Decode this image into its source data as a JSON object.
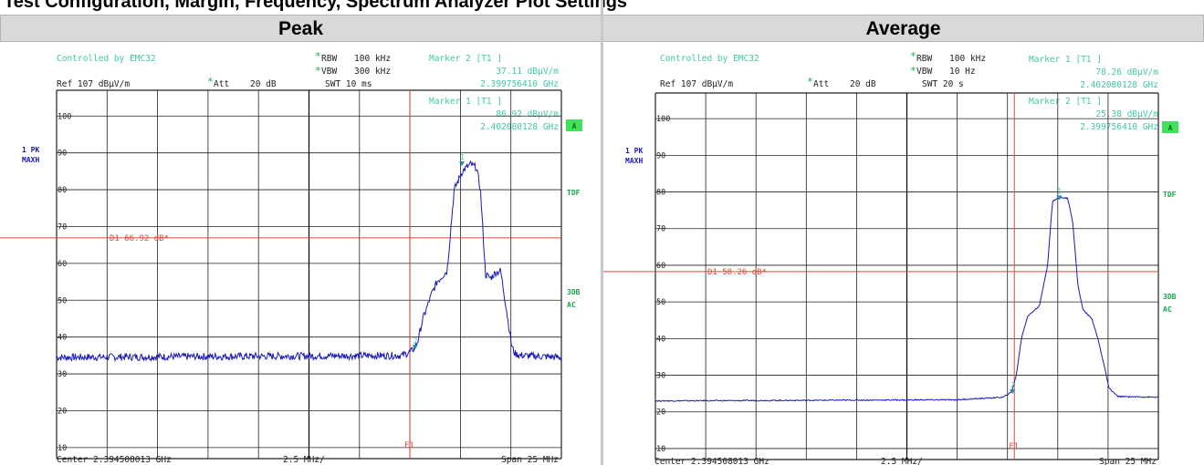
{
  "top_strip": "Test Configuration, Margin, Frequency, Spectrum Analyzer Plot Settings",
  "chart_data": [
    {
      "type": "line",
      "title": "Peak",
      "controlled_by": "Controlled by EMC32",
      "settings": {
        "rbw_label": "RBW",
        "rbw_value": "100 kHz",
        "vbw_label": "VBW",
        "vbw_value": "300 kHz",
        "ref": "Ref  107 dBµV/m",
        "att_label": "Att",
        "att_value": "20 dB",
        "swt": "SWT 10 ms"
      },
      "markers": [
        {
          "label": "Marker 2 [T1 ]",
          "level": "37.11 dBµV/m",
          "freq": "2.399756410 GHz",
          "id": "2",
          "x_mhz": 2399.75641,
          "y": 37.11
        },
        {
          "label": "Marker 1 [T1 ]",
          "level": "86.92 dBµV/m",
          "freq": "2.402080128 GHz",
          "id": "1",
          "x_mhz": 2402.080128,
          "y": 86.92
        }
      ],
      "display_line": {
        "label": "D1  66.92 dB*",
        "y": 66.92
      },
      "f1_line": {
        "label": "F1",
        "x_mhz": 2399.5
      },
      "trace_label": "1 PK",
      "trace_mode": "MAXH",
      "side_labels": [
        "A",
        "TDF",
        "3DB",
        "AC"
      ],
      "y_ticks": [
        "100",
        "90",
        "80",
        "70",
        "60",
        "50",
        "40",
        "30",
        "20",
        "10"
      ],
      "ylim": [
        7,
        107
      ],
      "xlim_mhz": [
        2382.008013,
        2407.008013
      ],
      "footer_center": "Center  2.394508013 GHz",
      "footer_div": "2.5 MHz/",
      "footer_span": "Span  25 MHz",
      "series": [
        {
          "color": "#1a1ab8",
          "noise_level": 34.5,
          "noise_amp": 1.0,
          "x": [
            2382.008,
            2399.1,
            2399.55,
            2399.75,
            2399.9,
            2400.15,
            2400.6,
            2400.85,
            2401.1,
            2401.35,
            2401.7,
            2402.1,
            2402.5,
            2402.8,
            2403.0,
            2403.25,
            2403.5,
            2403.75,
            2404.0,
            2404.3,
            2404.55,
            2404.7,
            2405.0,
            2407.008
          ],
          "y": [
            34.5,
            35.0,
            36.0,
            37.1,
            39.0,
            45.0,
            52.0,
            55.0,
            56.5,
            58.0,
            80.0,
            85.0,
            86.9,
            86.0,
            80.0,
            57.0,
            56.0,
            57.5,
            58.0,
            47.0,
            37.5,
            35.5,
            35.0,
            34.5
          ]
        }
      ]
    },
    {
      "type": "line",
      "title": "Average",
      "controlled_by": "Controlled by EMC32",
      "settings": {
        "rbw_label": "RBW",
        "rbw_value": "100 kHz",
        "vbw_label": "VBW",
        "vbw_value": "10 Hz",
        "ref": "Ref  107 dBµV/m",
        "att_label": "Att",
        "att_value": "20 dB",
        "swt": "SWT 20 s"
      },
      "markers": [
        {
          "label": "Marker 1 [T1 ]",
          "level": "78.26 dBµV/m",
          "freq": "2.402080128 GHz",
          "id": "1",
          "x_mhz": 2402.080128,
          "y": 78.26
        },
        {
          "label": "Marker 2 [T1 ]",
          "level": "25.38 dBµV/m",
          "freq": "2.399756410 GHz",
          "id": "2",
          "x_mhz": 2399.75641,
          "y": 25.38
        }
      ],
      "display_line": {
        "label": "D1  58.26 dB*",
        "y": 58.26
      },
      "f1_line": {
        "label": "F1",
        "x_mhz": 2399.85
      },
      "trace_label": "1 PK",
      "trace_mode": "MAXH",
      "side_labels": [
        "A",
        "TDF",
        "3DB",
        "AC"
      ],
      "y_ticks": [
        "100",
        "90",
        "80",
        "70",
        "60",
        "50",
        "40",
        "30",
        "20",
        "10"
      ],
      "ylim": [
        7,
        107
      ],
      "xlim_mhz": [
        2382.008013,
        2407.008013
      ],
      "footer_center": "Center  2.394508013 GHz",
      "footer_div": "2.5 MHz/",
      "footer_span": "Span  25 MHz",
      "series": [
        {
          "color": "#1a1ab8",
          "noise_level": 23.3,
          "noise_amp": 0.15,
          "x": [
            2382.008,
            2397.0,
            2399.3,
            2399.7,
            2399.95,
            2400.2,
            2400.5,
            2400.8,
            2401.1,
            2401.5,
            2401.75,
            2402.1,
            2402.5,
            2402.75,
            2403.0,
            2403.25,
            2403.5,
            2403.7,
            2404.0,
            2404.3,
            2404.55,
            2405.0,
            2407.008
          ],
          "y": [
            23.0,
            23.3,
            24.0,
            25.4,
            30.0,
            40.0,
            46.0,
            47.5,
            49.0,
            60.0,
            77.5,
            78.5,
            78.3,
            72.0,
            55.0,
            48.0,
            46.5,
            45.5,
            40.0,
            33.0,
            26.5,
            24.2,
            24.0
          ]
        }
      ]
    }
  ]
}
